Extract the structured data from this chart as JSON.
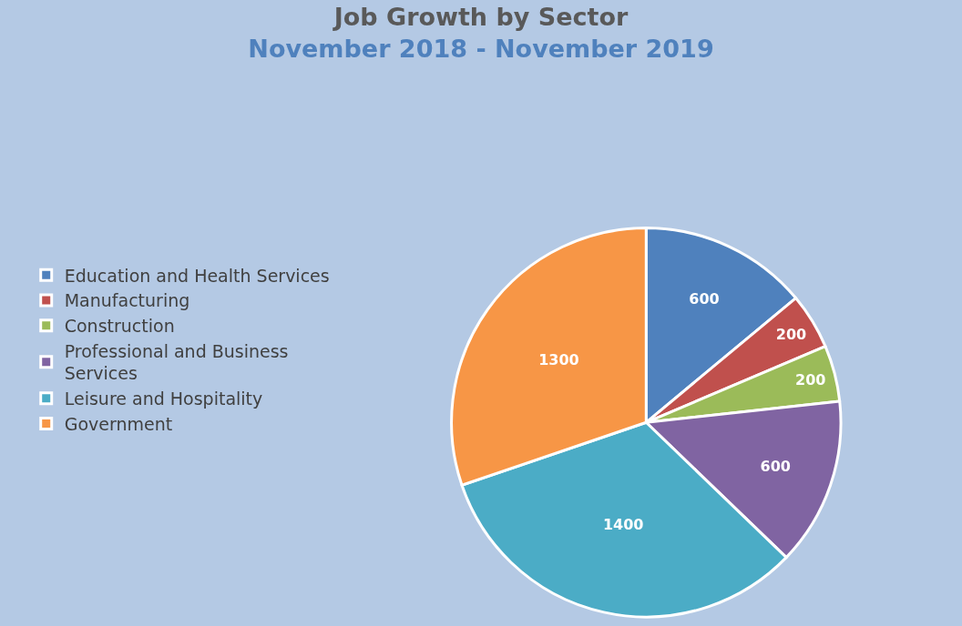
{
  "chart_data": {
    "type": "pie",
    "title": "Job Growth by Sector",
    "subtitle": "November 2018 - November 2019",
    "categories": [
      "Education and Health Services",
      "Manufacturing",
      "Construction",
      "Professional and Business Services",
      "Leisure and Hospitality",
      "Government"
    ],
    "values": [
      600,
      200,
      200,
      600,
      1400,
      1300
    ],
    "colors": [
      "#4f81bd",
      "#c0504d",
      "#9bbb59",
      "#8064a2",
      "#4bacc6",
      "#f79646"
    ],
    "data_labels": true,
    "legend": "left"
  }
}
